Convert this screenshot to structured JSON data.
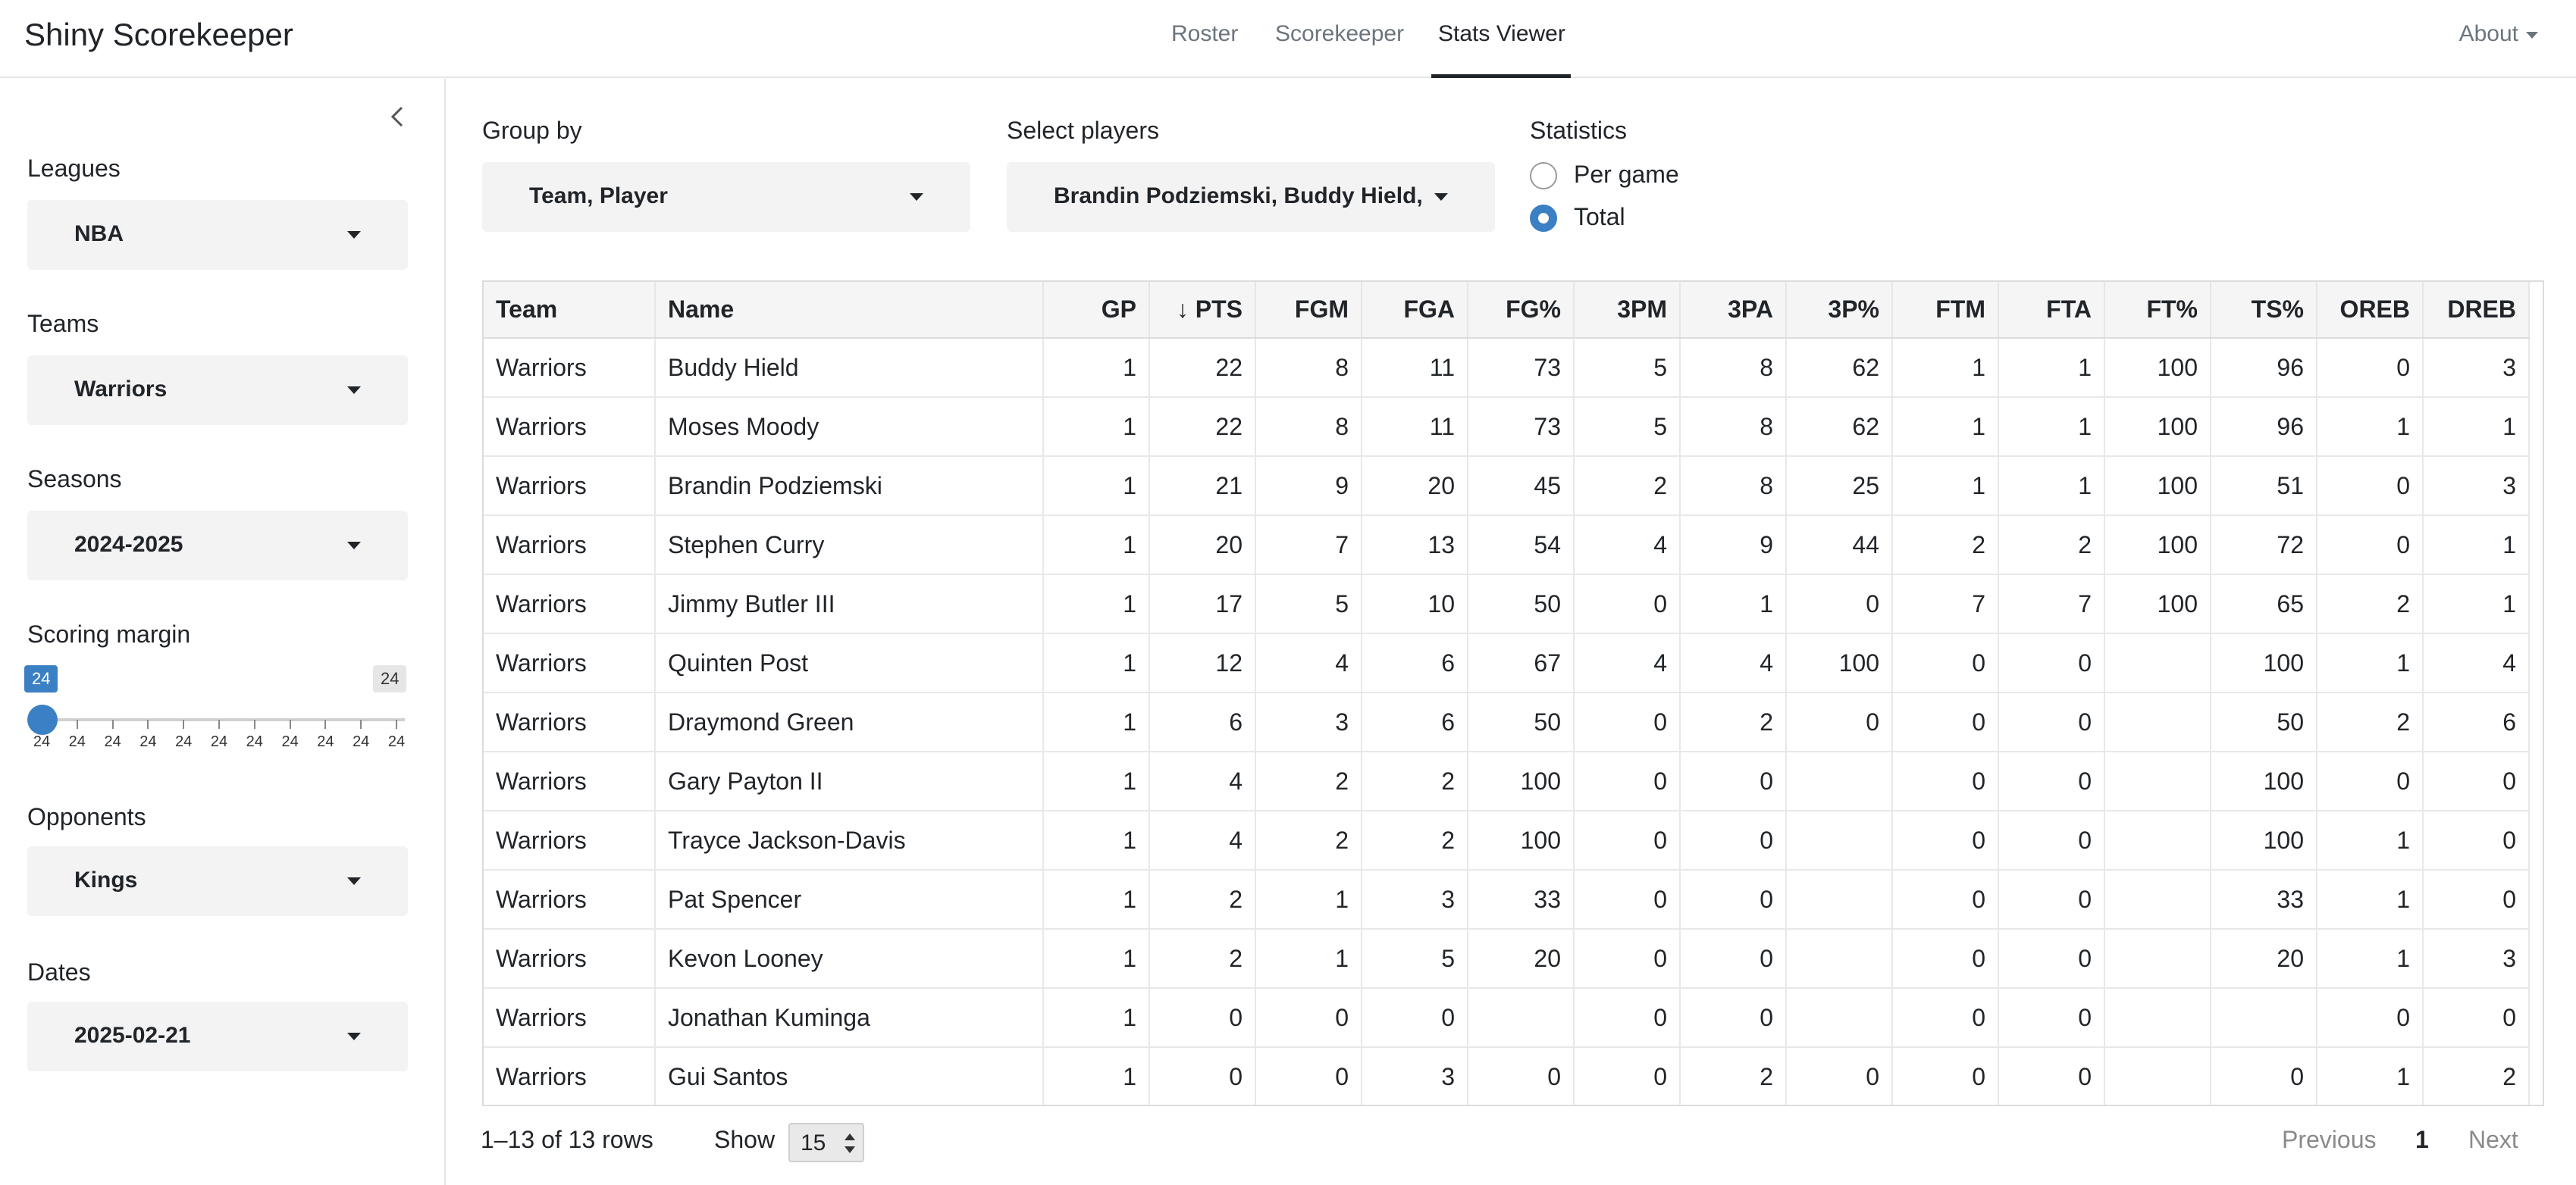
{
  "app": {
    "title": "Shiny Scorekeeper"
  },
  "nav": {
    "tabs": [
      "Roster",
      "Scorekeeper",
      "Stats Viewer"
    ],
    "active": "Stats Viewer",
    "about": "About"
  },
  "sidebar": {
    "leagues": {
      "label": "Leagues",
      "value": "NBA"
    },
    "teams": {
      "label": "Teams",
      "value": "Warriors"
    },
    "seasons": {
      "label": "Seasons",
      "value": "2024-2025"
    },
    "scoring_margin": {
      "label": "Scoring margin",
      "min_badge": "24",
      "max_badge": "24",
      "ticks": [
        "24",
        "24",
        "24",
        "24",
        "24",
        "24",
        "24",
        "24",
        "24",
        "24",
        "24"
      ]
    },
    "opponents": {
      "label": "Opponents",
      "value": "Kings"
    },
    "dates": {
      "label": "Dates",
      "value": "2025-02-21"
    }
  },
  "controls": {
    "group_by": {
      "label": "Group by",
      "value": "Team, Player"
    },
    "players": {
      "label": "Select players",
      "value": "Brandin Podziemski, Buddy Hield, I"
    },
    "statistics": {
      "label": "Statistics",
      "options": [
        "Per game",
        "Total"
      ],
      "selected": "Total"
    }
  },
  "table": {
    "columns": [
      "Team",
      "Name",
      "GP",
      "↓ PTS",
      "FGM",
      "FGA",
      "FG%",
      "3PM",
      "3PA",
      "3P%",
      "FTM",
      "FTA",
      "FT%",
      "TS%",
      "OREB",
      "DREB"
    ],
    "rows": [
      [
        "Warriors",
        "Buddy Hield",
        "1",
        "22",
        "8",
        "11",
        "73",
        "5",
        "8",
        "62",
        "1",
        "1",
        "100",
        "96",
        "0",
        "3"
      ],
      [
        "Warriors",
        "Moses Moody",
        "1",
        "22",
        "8",
        "11",
        "73",
        "5",
        "8",
        "62",
        "1",
        "1",
        "100",
        "96",
        "1",
        "1"
      ],
      [
        "Warriors",
        "Brandin Podziemski",
        "1",
        "21",
        "9",
        "20",
        "45",
        "2",
        "8",
        "25",
        "1",
        "1",
        "100",
        "51",
        "0",
        "3"
      ],
      [
        "Warriors",
        "Stephen Curry",
        "1",
        "20",
        "7",
        "13",
        "54",
        "4",
        "9",
        "44",
        "2",
        "2",
        "100",
        "72",
        "0",
        "1"
      ],
      [
        "Warriors",
        "Jimmy Butler III",
        "1",
        "17",
        "5",
        "10",
        "50",
        "0",
        "1",
        "0",
        "7",
        "7",
        "100",
        "65",
        "2",
        "1"
      ],
      [
        "Warriors",
        "Quinten Post",
        "1",
        "12",
        "4",
        "6",
        "67",
        "4",
        "4",
        "100",
        "0",
        "0",
        "",
        "100",
        "1",
        "4"
      ],
      [
        "Warriors",
        "Draymond Green",
        "1",
        "6",
        "3",
        "6",
        "50",
        "0",
        "2",
        "0",
        "0",
        "0",
        "",
        "50",
        "2",
        "6"
      ],
      [
        "Warriors",
        "Gary Payton II",
        "1",
        "4",
        "2",
        "2",
        "100",
        "0",
        "0",
        "",
        "0",
        "0",
        "",
        "100",
        "0",
        "0"
      ],
      [
        "Warriors",
        "Trayce Jackson-Davis",
        "1",
        "4",
        "2",
        "2",
        "100",
        "0",
        "0",
        "",
        "0",
        "0",
        "",
        "100",
        "1",
        "0"
      ],
      [
        "Warriors",
        "Pat Spencer",
        "1",
        "2",
        "1",
        "3",
        "33",
        "0",
        "0",
        "",
        "0",
        "0",
        "",
        "33",
        "1",
        "0"
      ],
      [
        "Warriors",
        "Kevon Looney",
        "1",
        "2",
        "1",
        "5",
        "20",
        "0",
        "0",
        "",
        "0",
        "0",
        "",
        "20",
        "1",
        "3"
      ],
      [
        "Warriors",
        "Jonathan Kuminga",
        "1",
        "0",
        "0",
        "0",
        "",
        "0",
        "0",
        "",
        "0",
        "0",
        "",
        "",
        "0",
        "0"
      ],
      [
        "Warriors",
        "Gui Santos",
        "1",
        "0",
        "0",
        "3",
        "0",
        "0",
        "2",
        "0",
        "0",
        "0",
        "",
        "0",
        "1",
        "2"
      ]
    ]
  },
  "pagination": {
    "summary": "1–13 of 13 rows",
    "show_label": "Show",
    "page_size": "15",
    "previous": "Previous",
    "current_page": "1",
    "next": "Next"
  },
  "colors": {
    "accent": "#3b7fc4",
    "select_bg": "#f3f3f3"
  }
}
